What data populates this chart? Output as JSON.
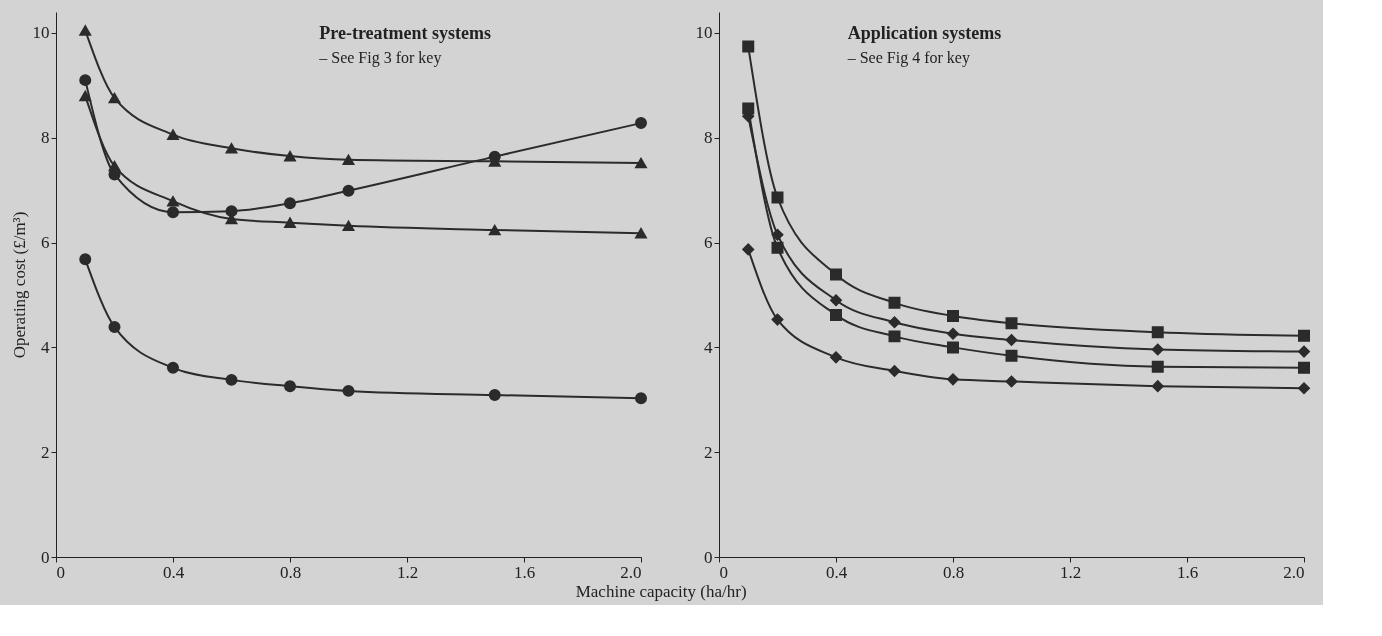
{
  "chart_data": [
    {
      "type": "line",
      "title": "Pre-treatment systems",
      "subtitle": "– See Fig 3 for key",
      "ylabel": "Operating cost (£/m³)",
      "xlabel": "Machine capacity (ha/hr)",
      "x": [
        0.1,
        0.2,
        0.4,
        0.6,
        0.8,
        1.0,
        1.5,
        2.0
      ],
      "series": [
        {
          "color": "#2b2b2b",
          "marker": "triangle",
          "values": [
            10.05,
            8.76,
            8.06,
            7.8,
            7.65,
            7.58,
            7.55,
            7.52
          ]
        },
        {
          "color": "#2b2b2b",
          "marker": "circle",
          "values": [
            9.1,
            7.3,
            6.58,
            6.6,
            6.75,
            6.99,
            7.64,
            8.28
          ]
        },
        {
          "color": "#2b2b2b",
          "marker": "triangle",
          "values": [
            8.8,
            7.46,
            6.79,
            6.45,
            6.38,
            6.32,
            6.24,
            6.18
          ]
        },
        {
          "color": "#2b2b2b",
          "marker": "circle",
          "values": [
            5.68,
            4.39,
            3.61,
            3.38,
            3.26,
            3.17,
            3.09,
            3.03
          ]
        }
      ],
      "xlim": [
        0,
        2.0
      ],
      "xticks": [
        0,
        0.4,
        0.8,
        1.2,
        1.6,
        {
          "value": 2.0,
          "label": "2.0"
        }
      ],
      "ylim": [
        0,
        10.4
      ],
      "yticks": [
        0,
        2,
        4,
        6,
        8,
        10
      ],
      "grid": false,
      "line_style": "solid"
    },
    {
      "type": "line",
      "title": "Application systems",
      "subtitle": "– See Fig 4 for key",
      "x": [
        0.1,
        0.2,
        0.4,
        0.6,
        0.8,
        1.0,
        1.5,
        2.0
      ],
      "series": [
        {
          "color": "#2b2b2b",
          "marker": "square",
          "values": [
            9.74,
            6.86,
            5.39,
            4.85,
            4.6,
            4.46,
            4.29,
            4.22
          ]
        },
        {
          "color": "#2b2b2b",
          "marker": "diamond",
          "values": [
            8.41,
            6.15,
            4.9,
            4.48,
            4.26,
            4.14,
            3.96,
            3.92
          ]
        },
        {
          "color": "#2b2b2b",
          "marker": "square",
          "values": [
            8.56,
            5.9,
            4.62,
            4.21,
            4.0,
            3.84,
            3.63,
            3.61
          ]
        },
        {
          "color": "#2b2b2b",
          "marker": "diamond",
          "values": [
            5.87,
            4.53,
            3.81,
            3.55,
            3.39,
            3.35,
            3.26,
            3.22
          ]
        }
      ],
      "xlim": [
        0,
        2.0
      ],
      "xticks": [
        0,
        0.4,
        0.8,
        1.2,
        1.6,
        {
          "value": 2.0,
          "label": "2.0"
        }
      ],
      "ylim": [
        0,
        10.4
      ],
      "yticks": [
        0,
        2,
        4,
        6,
        8,
        10
      ],
      "grid": false,
      "line_style": "solid"
    }
  ]
}
